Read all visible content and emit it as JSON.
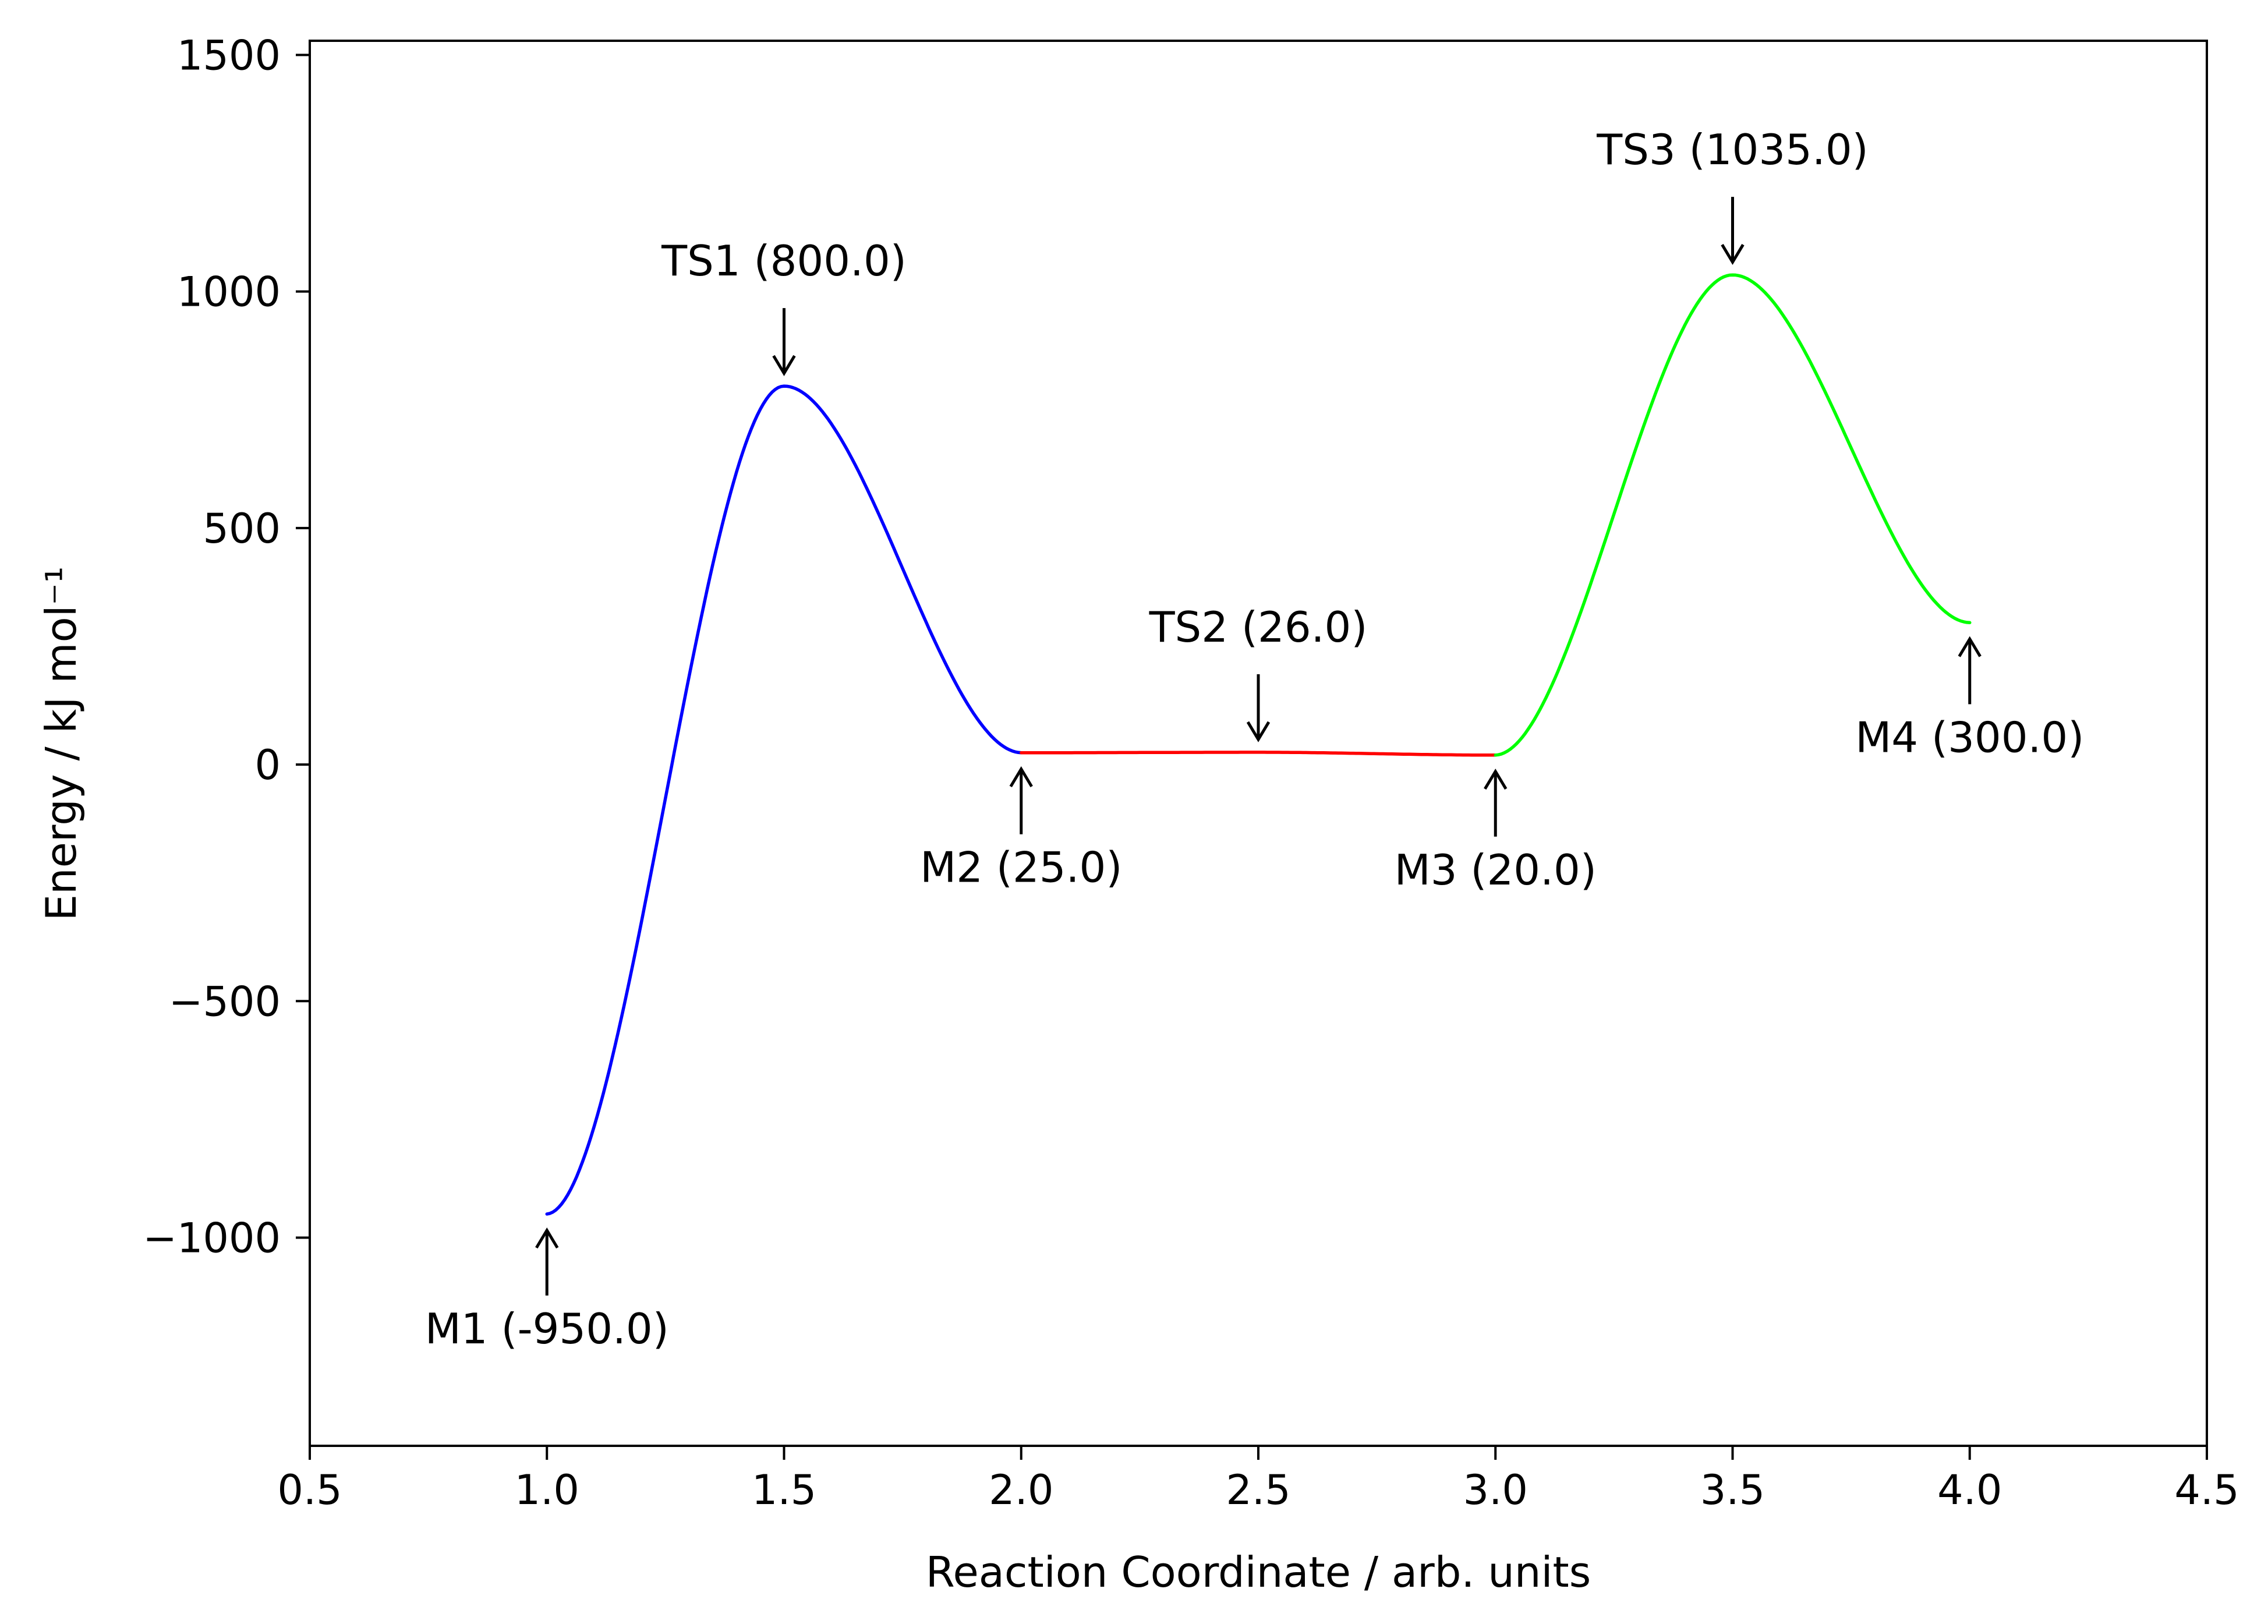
{
  "chart_data": {
    "type": "line",
    "title": "",
    "xlabel": "Reaction Coordinate / arb. units",
    "ylabel": "Energy / kJ mol⁻¹",
    "xlim": [
      0.5,
      4.5
    ],
    "ylim": [
      -1440,
      1530
    ],
    "grid": false,
    "xticks": [
      {
        "value": 0.5,
        "label": "0.5"
      },
      {
        "value": 1.0,
        "label": "1.0"
      },
      {
        "value": 1.5,
        "label": "1.5"
      },
      {
        "value": 2.0,
        "label": "2.0"
      },
      {
        "value": 2.5,
        "label": "2.5"
      },
      {
        "value": 3.0,
        "label": "3.0"
      },
      {
        "value": 3.5,
        "label": "3.5"
      },
      {
        "value": 4.0,
        "label": "4.0"
      },
      {
        "value": 4.5,
        "label": "4.5"
      }
    ],
    "yticks": [
      {
        "value": -1000,
        "label": "−1000"
      },
      {
        "value": -500,
        "label": "−500"
      },
      {
        "value": 0,
        "label": "0"
      },
      {
        "value": 500,
        "label": "500"
      },
      {
        "value": 1000,
        "label": "1000"
      },
      {
        "value": 1500,
        "label": "1500"
      }
    ],
    "series": [
      {
        "color": "#0000ff",
        "x": [
          1.0,
          1.5,
          2.0
        ],
        "y": [
          -950.0,
          800.0,
          25.0
        ]
      },
      {
        "color": "#ff0000",
        "x": [
          2.0,
          2.5,
          3.0
        ],
        "y": [
          25.0,
          26.0,
          20.0
        ]
      },
      {
        "color": "#00ff00",
        "x": [
          3.0,
          3.5,
          4.0
        ],
        "y": [
          20.0,
          1035.0,
          300.0
        ]
      }
    ],
    "annotations": [
      {
        "text": "M1 (-950.0)",
        "x": 1.0,
        "y": -950.0,
        "direction": "up"
      },
      {
        "text": "TS1 (800.0)",
        "x": 1.5,
        "y": 800.0,
        "direction": "down"
      },
      {
        "text": "M2 (25.0)",
        "x": 2.0,
        "y": 25.0,
        "direction": "up"
      },
      {
        "text": "TS2 (26.0)",
        "x": 2.5,
        "y": 26.0,
        "direction": "down"
      },
      {
        "text": "M3 (20.0)",
        "x": 3.0,
        "y": 20.0,
        "direction": "up"
      },
      {
        "text": "TS3 (1035.0)",
        "x": 3.5,
        "y": 1035.0,
        "direction": "down"
      },
      {
        "text": "M4 (300.0)",
        "x": 4.0,
        "y": 300.0,
        "direction": "up"
      }
    ]
  }
}
